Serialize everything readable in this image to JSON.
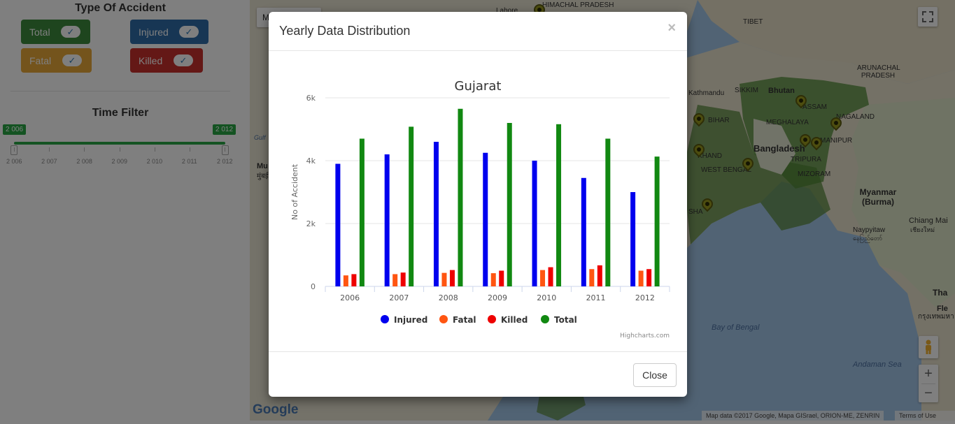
{
  "sidebar": {
    "type_title": "Type Of Accident",
    "types": [
      {
        "label": "Total",
        "color": "#3c8a3c",
        "check": "✓"
      },
      {
        "label": "Injured",
        "color": "#2f6da8",
        "check": "✓"
      },
      {
        "label": "Fatal",
        "color": "#e8a838",
        "check": "✓"
      },
      {
        "label": "Killed",
        "color": "#c9302c",
        "check": "✓"
      }
    ],
    "time_title": "Time Filter",
    "slider": {
      "min_label": "2 006",
      "max_label": "2 012",
      "ticks": [
        "2 006",
        "2 007",
        "2 008",
        "2 009",
        "2 010",
        "2 011",
        "2 012"
      ]
    }
  },
  "map": {
    "mode_button": "M",
    "labels": {
      "lahore": "Lahore",
      "himachal": "HIMACHAL PRADESH",
      "tibet": "TIBET",
      "arunachal": "ARUNACHAL PRADESH",
      "kathmandu": "Kathmandu",
      "sikkim": "SIKKIM",
      "bhutan": "Bhutan",
      "assam": "ASSAM",
      "nagaland": "NAGALAND",
      "bihar": "BIHAR",
      "meghalaya": "MEGHALAYA",
      "manipur": "MANIPUR",
      "bangladesh": "Bangladesh",
      "jharkhand": "KHAND",
      "tripura": "TRIPURA",
      "west_bengal": "WEST BENGAL",
      "mizoram": "MIZORAM",
      "myanmar": "Myanmar (Burma)",
      "odisha": "SHA",
      "chiang_mai": "Chiang Mai",
      "chiang_mai_thai": "เชียงใหม่",
      "naypyitaw": "Naypyitaw",
      "naypyitaw_burmese": "နေပြည်တော်",
      "bay_of_bengal": "Bay of Bengal",
      "andaman_sea": "Andaman Sea",
      "thai": "Tha",
      "bangkok": "กรุงเทพมหา",
      "mumbai": "Mu",
      "mumbai_script": "मुंबई",
      "gulf": "Gulf",
      "fle": "Fle"
    },
    "attribution": "Map data ©2017 Google, Mapa GISrael, ORION-ME, ZENRIN",
    "terms": "Terms of Use",
    "google_logo": "Google",
    "zoom_in": "+",
    "zoom_out": "−",
    "fullscreen_icon": "fullscreen-icon",
    "pegman_icon": "pegman-icon"
  },
  "modal": {
    "title": "Yearly Data Distribution",
    "close_x": "×",
    "close_button": "Close"
  },
  "chart_data": {
    "type": "bar",
    "title": "Gujarat",
    "xlabel": "",
    "ylabel": "No of Accident",
    "categories": [
      "2006",
      "2007",
      "2008",
      "2009",
      "2010",
      "2011",
      "2012"
    ],
    "ylim": [
      0,
      6000
    ],
    "yticks": [
      "0",
      "2k",
      "4k",
      "6k"
    ],
    "ytick_values": [
      0,
      2000,
      4000,
      6000
    ],
    "legend_position": "bottom",
    "credits": "Highcharts.com",
    "series": [
      {
        "name": "Injured",
        "color": "#0000ee",
        "values": [
          3900,
          4200,
          4600,
          4250,
          4000,
          3450,
          3000
        ]
      },
      {
        "name": "Fatal",
        "color": "#ff5511",
        "values": [
          350,
          390,
          430,
          420,
          520,
          550,
          500
        ]
      },
      {
        "name": "Killed",
        "color": "#ee0000",
        "values": [
          390,
          440,
          520,
          500,
          610,
          670,
          550
        ]
      },
      {
        "name": "Total",
        "color": "#118811",
        "values": [
          4700,
          5080,
          5650,
          5200,
          5160,
          4700,
          4130
        ]
      }
    ]
  }
}
